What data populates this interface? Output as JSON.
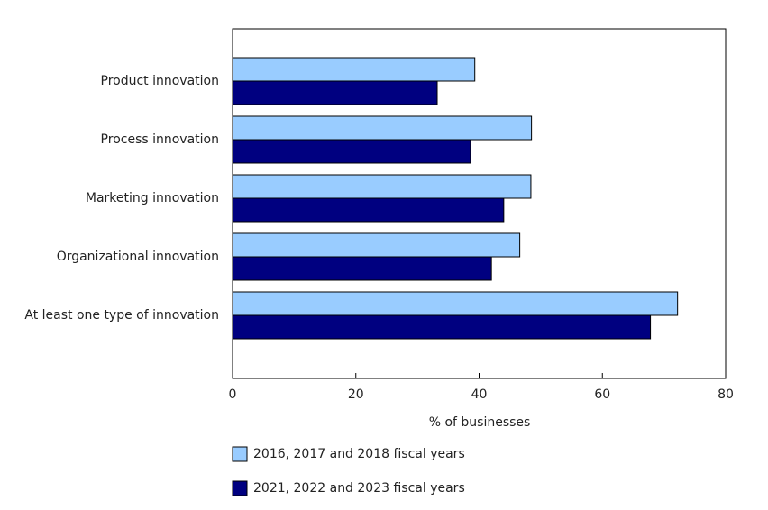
{
  "chart_data": {
    "type": "bar",
    "orientation": "horizontal",
    "categories": [
      "Product innovation",
      "Process innovation",
      "Marketing innovation",
      "Organizational innovation",
      "At least one type of innovation"
    ],
    "series": [
      {
        "name": "2016, 2017 and 2018 fiscal years",
        "color": "#99ccff",
        "values": [
          39.3,
          48.5,
          48.4,
          46.6,
          72.2
        ]
      },
      {
        "name": "2021, 2022 and 2023 fiscal years",
        "color": "#000080",
        "values": [
          33.2,
          38.6,
          44.0,
          42.0,
          67.8
        ]
      }
    ],
    "x_label": "% of businesses",
    "xlim": [
      0,
      80
    ],
    "xticks": [
      0,
      20,
      40,
      60,
      80
    ],
    "legend": "bottom"
  }
}
